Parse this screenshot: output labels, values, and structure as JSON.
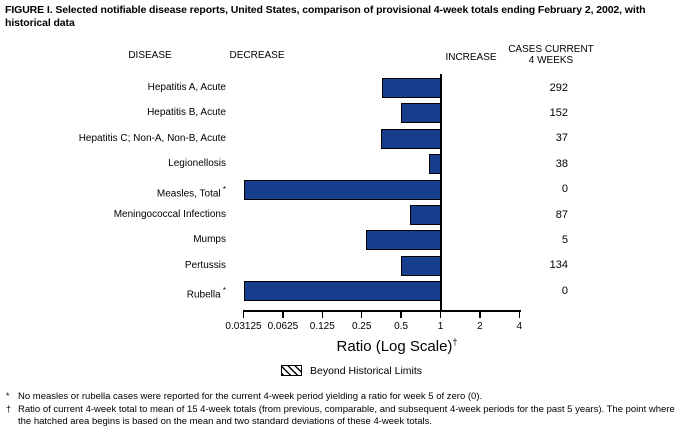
{
  "title": "FIGURE I. Selected notifiable disease reports, United States, comparison of provisional 4-week totals ending February 2, 2002, with historical data",
  "columns": {
    "disease": "DISEASE",
    "decrease": "DECREASE",
    "increase": "INCREASE",
    "cases_line1": "CASES CURRENT",
    "cases_line2": "4 WEEKS"
  },
  "chart_data": {
    "type": "bar",
    "orientation": "horizontal",
    "title": "Selected notifiable disease reports, ratio of current 4-week total to historical mean",
    "x_axis": {
      "label": "Ratio (Log Scale)",
      "label_superscript": "†",
      "scale": "log",
      "range": [
        0.03125,
        4
      ],
      "ticks": [
        0.03125,
        0.0625,
        0.125,
        0.25,
        0.5,
        1,
        2,
        4
      ],
      "tick_labels": [
        "0.03125",
        "0.0625",
        "0.125",
        "0.25",
        "0.5",
        "1",
        "2",
        "4"
      ],
      "reference_line": 1
    },
    "bar_color": "#163e8c",
    "rows": [
      {
        "disease": "Hepatitis A, Acute",
        "footnote": "",
        "ratio": 0.36,
        "cases": "292"
      },
      {
        "disease": "Hepatitis B, Acute",
        "footnote": "",
        "ratio": 0.5,
        "cases": "152"
      },
      {
        "disease": "Hepatitis C; Non-A, Non-B, Acute",
        "footnote": "",
        "ratio": 0.35,
        "cases": "37"
      },
      {
        "disease": "Legionellosis",
        "footnote": "",
        "ratio": 0.82,
        "cases": "38"
      },
      {
        "disease": "Measles, Total",
        "footnote": "*",
        "ratio": 0,
        "cases": "0"
      },
      {
        "disease": "Meningococcal Infections",
        "footnote": "",
        "ratio": 0.58,
        "cases": "87"
      },
      {
        "disease": "Mumps",
        "footnote": "",
        "ratio": 0.27,
        "cases": "5"
      },
      {
        "disease": "Pertussis",
        "footnote": "",
        "ratio": 0.5,
        "cases": "134"
      },
      {
        "disease": "Rubella",
        "footnote": "*",
        "ratio": 0,
        "cases": "0"
      }
    ],
    "legend": {
      "swatch": "hatched",
      "label": "Beyond Historical Limits",
      "position": "bottom-center"
    }
  },
  "footnotes": [
    {
      "marker": "*",
      "text": "No measles or rubella cases were reported for the current 4-week period yielding a ratio for week 5 of zero (0)."
    },
    {
      "marker": "†",
      "text": "Ratio of current 4-week total to mean of 15 4-week totals (from previous, comparable, and subsequent 4-week periods for the past 5 years). The point where the hatched area begins is based on the mean and two standard deviations of these 4-week totals."
    }
  ]
}
